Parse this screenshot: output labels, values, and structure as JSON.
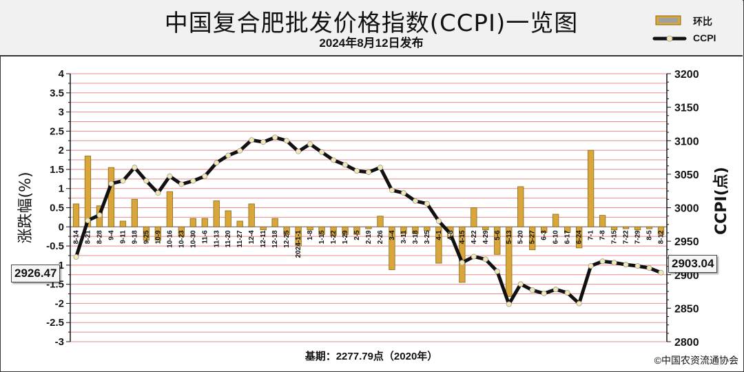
{
  "header": {
    "title": "中国复合肥批发价格指数(CCPI)一览图",
    "subtitle": "2024年8月12日发布"
  },
  "legend": {
    "bar_label": "环比",
    "line_label": "CCPI"
  },
  "footer": {
    "baseline_note": "基期：2277.79点（2020年）",
    "copyright": "©中国农资流通协会"
  },
  "callouts": {
    "start_value": "2926.47",
    "end_value": "2903.04"
  },
  "colors": {
    "bar_fill": "#d8a63a",
    "bar_edge": "#8a6a18",
    "grid_red": "#ee8888",
    "line": "#111111",
    "marker_fill": "#f3e9b5"
  },
  "chart_data": {
    "type": "bar+line",
    "categories": [
      "8-14",
      "8-21",
      "8-28",
      "9-4",
      "9-11",
      "9-18",
      "9-25",
      "10-9",
      "10-16",
      "10-23",
      "10-30",
      "11-6",
      "11-13",
      "11-20",
      "11-27",
      "12-4",
      "12-11",
      "12-18",
      "12-25",
      "2024-1-1",
      "1-8",
      "1-15",
      "1-22",
      "1-29",
      "2-5",
      "2-19",
      "2-26",
      "3-4",
      "3-11",
      "3-18",
      "3-25",
      "4-1",
      "4-8",
      "4-15",
      "4-22",
      "4-29",
      "5-6",
      "5-13",
      "5-20",
      "5-27",
      "6-3",
      "6-10",
      "6-17",
      "6-24",
      "7-1",
      "7-8",
      "7-15",
      "7-22",
      "7-29",
      "8-5",
      "8-12"
    ],
    "series": [
      {
        "name": "环比",
        "type": "bar",
        "axis": "left",
        "values": [
          0.6,
          1.85,
          0.55,
          1.55,
          0.15,
          0.72,
          -0.35,
          -0.35,
          0.92,
          -0.25,
          0.22,
          0.22,
          0.68,
          0.42,
          0.15,
          0.6,
          -0.08,
          0.22,
          -0.2,
          -0.5,
          -0.08,
          -0.2,
          -0.22,
          -0.2,
          -0.2,
          -0.05,
          0.28,
          -1.12,
          -0.18,
          -0.18,
          -0.1,
          -0.95,
          -0.3,
          -1.45,
          0.5,
          -0.08,
          -0.72,
          -1.82,
          1.05,
          -0.6,
          -0.15,
          0.33,
          -0.15,
          -0.55,
          2.0,
          0.3,
          -0.08,
          -0.05,
          -0.08,
          -0.05,
          -0.2
        ]
      },
      {
        "name": "CCPI",
        "type": "line",
        "axis": "right",
        "values": [
          2926.47,
          2981,
          2989,
          3036,
          3040,
          3060,
          3040,
          3022,
          3047,
          3035,
          3040,
          3047,
          3067,
          3078,
          3085,
          3101,
          3098,
          3105,
          3100,
          3084,
          3095,
          3083,
          3071,
          3064,
          3055,
          3053,
          3060,
          3026,
          3022,
          3010,
          3006,
          2980,
          2961,
          2918,
          2927,
          2923,
          2905,
          2856,
          2886,
          2877,
          2872,
          2878,
          2873,
          2857,
          2913,
          2920,
          2918,
          2915,
          2913,
          2910,
          2903.04
        ]
      }
    ],
    "y_left": {
      "label": "涨跌幅(%)",
      "ylim": [
        -3,
        4
      ],
      "ticks": [
        4,
        3.5,
        3,
        2.5,
        2,
        1.5,
        1,
        0.5,
        0,
        -0.5,
        -1,
        -1.5,
        -2,
        -2.5,
        -3
      ]
    },
    "y_right": {
      "label": "CCPI(点)",
      "ylim": [
        2800,
        3200
      ],
      "ticks": [
        3200,
        3150,
        3100,
        3050,
        3000,
        2950,
        2900,
        2850,
        2800
      ]
    },
    "grid": true
  }
}
